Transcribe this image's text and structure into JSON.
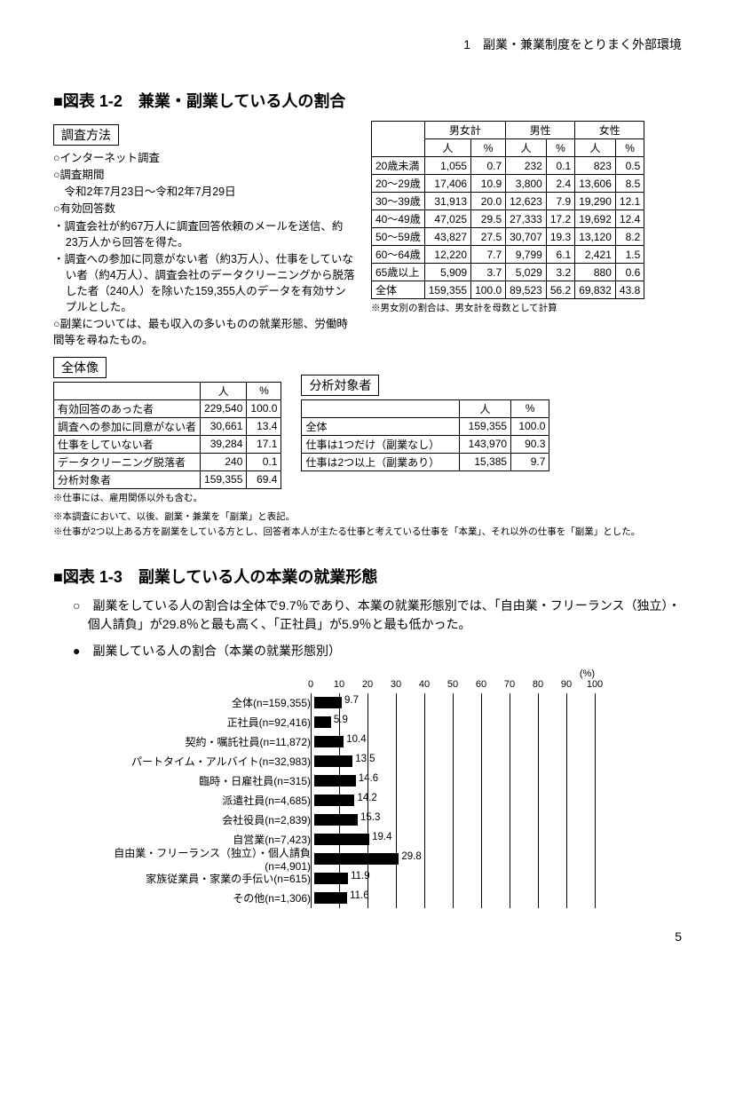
{
  "header": "1　副業・兼業制度をとりまく外部環境",
  "fig12_title": "■図表 1-2　兼業・副業している人の割合",
  "survey": {
    "label": "調査方法",
    "lines": [
      "○インターネット調査",
      "○調査期間",
      "　令和2年7月23日～令和2年7月29日",
      "○有効回答数",
      "・調査会社が約67万人に調査回答依頼のメールを送信、約23万人から回答を得た。",
      "・調査への参加に同意がない者（約3万人）、仕事をしていない者（約4万人）、調査会社のデータクリーニングから脱落した者（240人）を除いた159,355人のデータを有効サンプルとした。",
      "○副業については、最も収入の多いものの就業形態、労働時間等を尋ねたもの。"
    ]
  },
  "age_table": {
    "head_top": [
      "",
      "男女計",
      "男性",
      "女性"
    ],
    "head_sub": [
      "",
      "人",
      "%",
      "人",
      "%",
      "人",
      "%"
    ],
    "rows": [
      [
        "20歳未満",
        "1,055",
        "0.7",
        "232",
        "0.1",
        "823",
        "0.5"
      ],
      [
        "20～29歳",
        "17,406",
        "10.9",
        "3,800",
        "2.4",
        "13,606",
        "8.5"
      ],
      [
        "30～39歳",
        "31,913",
        "20.0",
        "12,623",
        "7.9",
        "19,290",
        "12.1"
      ],
      [
        "40～49歳",
        "47,025",
        "29.5",
        "27,333",
        "17.2",
        "19,692",
        "12.4"
      ],
      [
        "50～59歳",
        "43,827",
        "27.5",
        "30,707",
        "19.3",
        "13,120",
        "8.2"
      ],
      [
        "60～64歳",
        "12,220",
        "7.7",
        "9,799",
        "6.1",
        "2,421",
        "1.5"
      ],
      [
        "65歳以上",
        "5,909",
        "3.7",
        "5,029",
        "3.2",
        "880",
        "0.6"
      ],
      [
        "全体",
        "159,355",
        "100.0",
        "89,523",
        "56.2",
        "69,832",
        "43.8"
      ]
    ],
    "note": "※男女別の割合は、男女計を母数として計算"
  },
  "overall": {
    "label": "全体像",
    "head": [
      "",
      "人",
      "%"
    ],
    "rows": [
      [
        "有効回答のあった者",
        "229,540",
        "100.0"
      ],
      [
        "調査への参加に同意がない者",
        "30,661",
        "13.4"
      ],
      [
        "仕事をしていない者",
        "39,284",
        "17.1"
      ],
      [
        "データクリーニング脱落者",
        "240",
        "0.1"
      ],
      [
        "分析対象者",
        "159,355",
        "69.4"
      ]
    ],
    "note": "※仕事には、雇用関係以外も含む。"
  },
  "target": {
    "label": "分析対象者",
    "head": [
      "",
      "人",
      "%"
    ],
    "rows": [
      [
        "全体",
        "159,355",
        "100.0"
      ],
      [
        "仕事は1つだけ（副業なし）",
        "143,970",
        "90.3"
      ],
      [
        "仕事は2つ以上（副業あり）",
        "15,385",
        "9.7"
      ]
    ]
  },
  "defnotes": [
    "※本調査において、以後、副業・兼業を「副業」と表記。",
    "※仕事が2つ以上ある方を副業をしている方とし、回答者本人が主たる仕事と考えている仕事を「本業」、それ以外の仕事を「副業」とした。"
  ],
  "fig13_title": "■図表 1-3　副業している人の本業の就業形態",
  "fig13_body": "○　副業をしている人の割合は全体で9.7％であり、本業の就業形態別では、「自由業・フリーランス（独立）・個人請負」が29.8％と最も高く、「正社員」が5.9％と最も低かった。",
  "fig13_sub": "●　副業している人の割合（本業の就業形態別）",
  "chart": {
    "pct_label": "(%)",
    "ticks": [
      0,
      10,
      20,
      30,
      40,
      50,
      60,
      70,
      80,
      90,
      100
    ],
    "max": 100,
    "bar_color": "#000000",
    "rows": [
      {
        "label": "全体(n=159,355)",
        "value": 9.7
      },
      {
        "label": "正社員(n=92,416)",
        "value": 5.9
      },
      {
        "label": "契約・嘱託社員(n=11,872)",
        "value": 10.4
      },
      {
        "label": "パートタイム・アルバイト(n=32,983)",
        "value": 13.5
      },
      {
        "label": "臨時・日雇社員(n=315)",
        "value": 14.6
      },
      {
        "label": "派遣社員(n=4,685)",
        "value": 14.2
      },
      {
        "label": "会社役員(n=2,839)",
        "value": 15.3
      },
      {
        "label": "自営業(n=7,423)",
        "value": 19.4
      },
      {
        "label": "自由業・フリーランス（独立）・個人請負(n=4,901)",
        "value": 29.8
      },
      {
        "label": "家族従業員・家業の手伝い(n=615)",
        "value": 11.9
      },
      {
        "label": "その他(n=1,306)",
        "value": 11.6
      }
    ]
  },
  "page_number": "5"
}
